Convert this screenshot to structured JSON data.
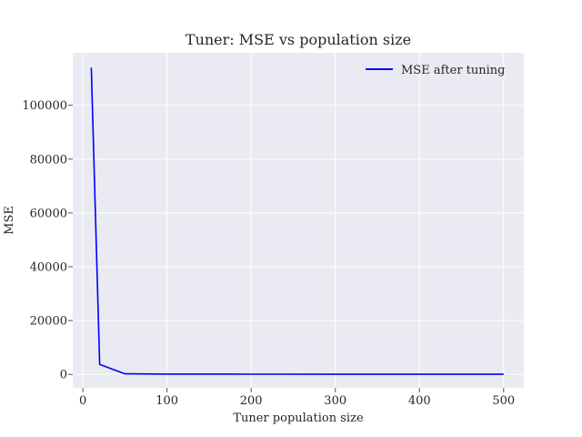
{
  "chart_data": {
    "type": "line",
    "title": "Tuner: MSE vs population size",
    "xlabel": "Tuner population size",
    "ylabel": "MSE",
    "xlim": [
      -12,
      524
    ],
    "ylim": [
      -5000,
      119500
    ],
    "xticks": [
      0,
      100,
      200,
      300,
      400,
      500
    ],
    "yticks": [
      0,
      20000,
      40000,
      60000,
      80000,
      100000
    ],
    "grid": true,
    "legend_position": "top-right",
    "series": [
      {
        "name": "MSE after tuning",
        "color": "#0000ff",
        "x": [
          10,
          20,
          50,
          100,
          200,
          300,
          400,
          500
        ],
        "y": [
          114000,
          3700,
          200,
          100,
          60,
          40,
          30,
          25
        ]
      }
    ]
  },
  "colors": {
    "plot_background": "#eaeaf2",
    "grid": "#ffffff",
    "text": "#262626"
  }
}
